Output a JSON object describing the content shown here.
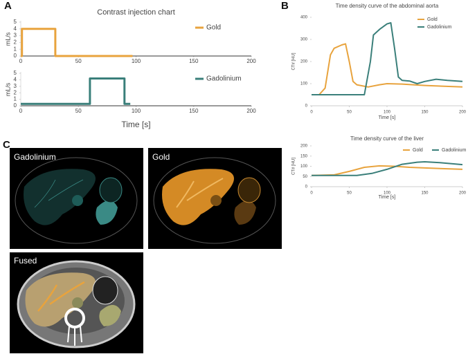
{
  "panels": {
    "a": "A",
    "b": "B",
    "c": "C"
  },
  "images": [
    {
      "label": "Gadolinium"
    },
    {
      "label": "Gold"
    },
    {
      "label": "Fused"
    }
  ],
  "chart_data": [
    {
      "type": "line",
      "title": "Contrast injection chart",
      "ylabel": "mL/s",
      "xlim": [
        0,
        200
      ],
      "xticks": [
        0,
        50,
        100,
        150,
        200
      ],
      "ylim": [
        0,
        5
      ],
      "yticks": [
        0,
        1,
        2,
        3,
        4,
        5
      ],
      "legend": "upper right",
      "series": [
        {
          "name": "Gold",
          "color": "#e8a33d",
          "x": [
            0,
            1,
            1,
            30,
            30,
            97
          ],
          "values": [
            0,
            0,
            4,
            4,
            0,
            0
          ]
        }
      ]
    },
    {
      "type": "line",
      "xlabel": "Time [s]",
      "ylabel": "mL/s",
      "xlim": [
        0,
        200
      ],
      "xticks": [
        0,
        50,
        100,
        150,
        200
      ],
      "ylim": [
        0,
        5
      ],
      "yticks": [
        0,
        1,
        2,
        3,
        4,
        5
      ],
      "legend": "upper right",
      "series": [
        {
          "name": "Gadolinium",
          "color": "#3a7f7a",
          "x": [
            0,
            60,
            60,
            90,
            90,
            95
          ],
          "values": [
            0.3,
            0.3,
            4.2,
            4.2,
            0.3,
            0.3
          ]
        }
      ]
    },
    {
      "type": "line",
      "title": "Time density curve of the abdominal aorta",
      "xlabel": "Time [s]",
      "ylabel": "CT# [HU]",
      "xlim": [
        0,
        200
      ],
      "xticks": [
        0,
        50,
        100,
        150,
        200
      ],
      "ylim": [
        0,
        400
      ],
      "yticks": [
        0,
        100,
        200,
        300,
        400
      ],
      "legend": "upper right",
      "series": [
        {
          "name": "Gold",
          "color": "#e8a33d",
          "x": [
            0,
            10,
            18,
            25,
            30,
            40,
            45,
            50,
            55,
            60,
            75,
            90,
            100,
            120,
            150,
            200
          ],
          "values": [
            50,
            50,
            80,
            230,
            260,
            275,
            280,
            200,
            110,
            95,
            85,
            95,
            100,
            98,
            92,
            85
          ]
        },
        {
          "name": "Gadolinium",
          "color": "#3a7f7a",
          "x": [
            0,
            70,
            78,
            82,
            90,
            100,
            105,
            110,
            115,
            120,
            130,
            140,
            150,
            165,
            180,
            200
          ],
          "values": [
            50,
            50,
            200,
            320,
            345,
            370,
            375,
            260,
            130,
            115,
            112,
            100,
            110,
            120,
            115,
            110
          ]
        }
      ]
    },
    {
      "type": "line",
      "title": "Time density curve of the liver",
      "xlabel": "Time [s]",
      "ylabel": "CT# [HU]",
      "xlim": [
        0,
        200
      ],
      "xticks": [
        0,
        50,
        100,
        150,
        200
      ],
      "ylim": [
        0,
        200
      ],
      "yticks": [
        0,
        50,
        100,
        150,
        200
      ],
      "legend": "upper center",
      "series": [
        {
          "name": "Gold",
          "color": "#e8a33d",
          "x": [
            0,
            30,
            50,
            70,
            90,
            110,
            130,
            150,
            200
          ],
          "values": [
            55,
            58,
            75,
            95,
            102,
            100,
            95,
            92,
            85
          ]
        },
        {
          "name": "Gadolinium",
          "color": "#3a7f7a",
          "x": [
            0,
            60,
            80,
            100,
            120,
            140,
            150,
            170,
            200
          ],
          "values": [
            55,
            55,
            65,
            85,
            110,
            120,
            122,
            118,
            108
          ]
        }
      ]
    }
  ]
}
